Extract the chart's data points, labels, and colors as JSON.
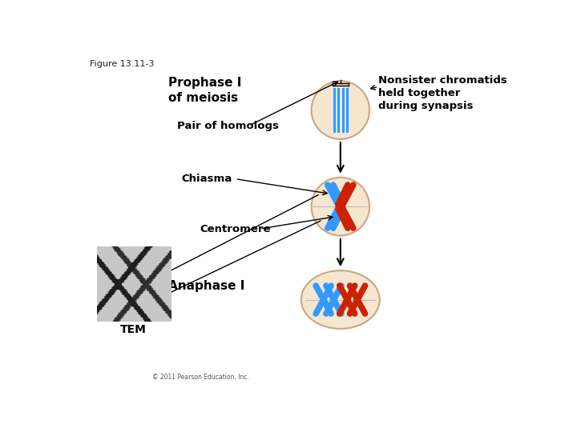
{
  "figure_label": "Figure 13.11-3",
  "background_color": "#ffffff",
  "title_prophase": "Prophase I\nof meiosis",
  "label_pair_homologs": "Pair of homologs",
  "label_chiasma": "Chiasma",
  "label_centromere": "Centromere",
  "label_TEM": "TEM",
  "label_anaphase": "Anaphase I",
  "label_nonsister": "Nonsister chromatids\nheld together\nduring synapsis",
  "copyright": "© 2011 Pearson Education, Inc.",
  "cell_color": "#f5e6d0",
  "cell_edge": "#c8a882",
  "blue_color": "#3399ff",
  "red_color": "#cc2200",
  "ox1": 0.6,
  "oy1": 0.825,
  "ox2": 0.6,
  "oy2": 0.535,
  "ox3": 0.6,
  "oy3": 0.255,
  "ow": 0.13,
  "oh": 0.175
}
